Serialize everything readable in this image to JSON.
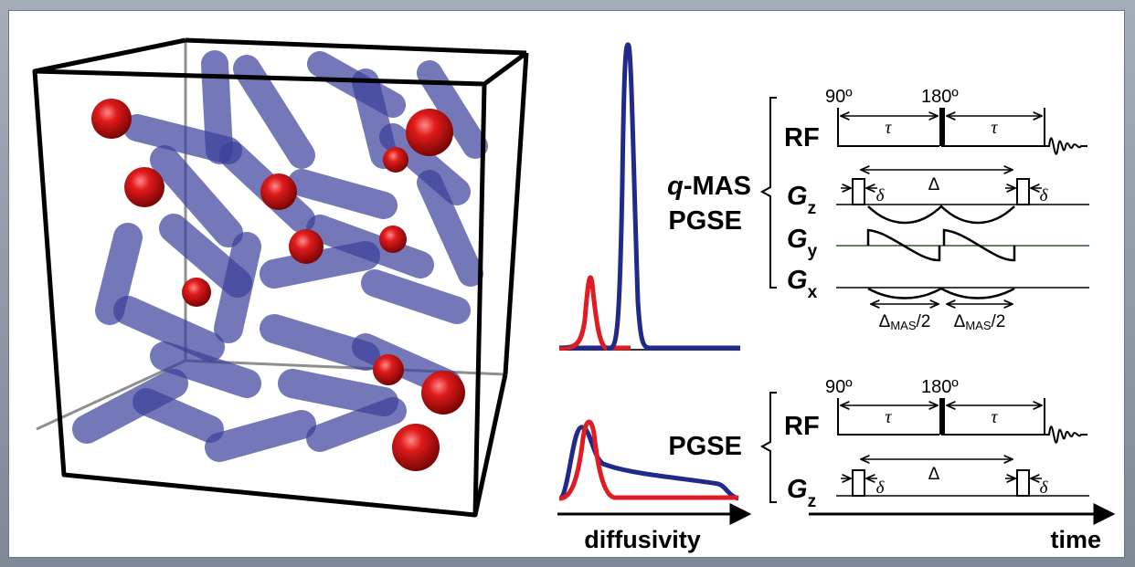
{
  "colors": {
    "rod": "#3a3f9a",
    "sphere": "#d11414",
    "blue_curve": "#1f2a8a",
    "red_curve": "#e01b24",
    "frame_bg": "#8f9aa7"
  },
  "qmas": {
    "label_q": "q",
    "label_rest": "-MAS",
    "label_pgse": "PGSE",
    "rf": "RF",
    "pulse90": "90º",
    "pulse180": "180º",
    "tau": "τ",
    "delta": "δ",
    "big_delta": "Δ",
    "gz": "G",
    "gz_sub": "z",
    "gy": "G",
    "gy_sub": "y",
    "gx": "G",
    "gx_sub": "x",
    "mas_delta": "Δ",
    "mas_sub": "MAS",
    "mas_half": "/2"
  },
  "pgse": {
    "label": "PGSE",
    "rf": "RF",
    "pulse90": "90º",
    "pulse180": "180º",
    "tau": "τ",
    "delta": "δ",
    "big_delta": "Δ",
    "gz": "G",
    "gz_sub": "z"
  },
  "axes": {
    "diffusivity": "diffusivity",
    "time": "time"
  }
}
